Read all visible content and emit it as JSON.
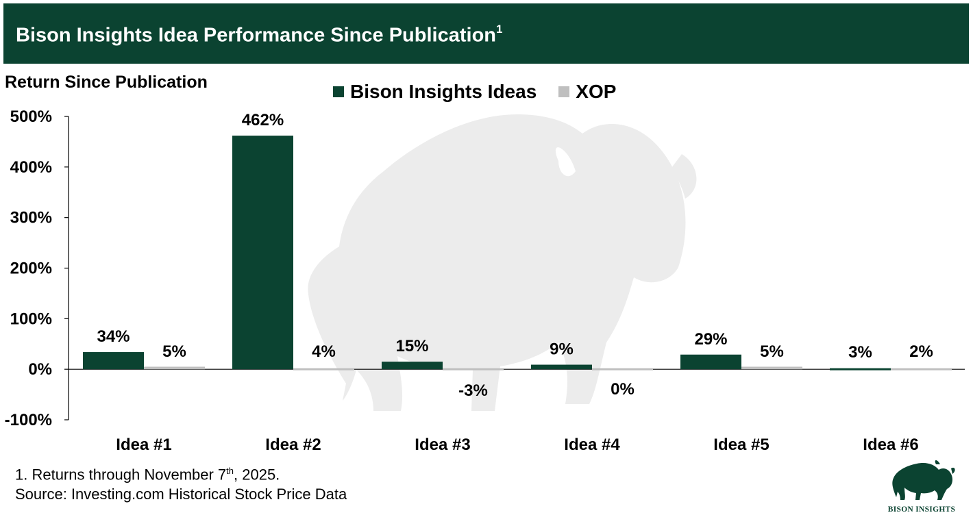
{
  "header": {
    "title": "Bison Insights Idea Performance Since Publication",
    "title_sup": "1"
  },
  "colors": {
    "brand": "#0b4331",
    "xop": "#bfbfbf",
    "watermark": "#ececec"
  },
  "chart_data": {
    "type": "bar",
    "title": "Bison Insights Idea Performance Since Publication",
    "ylabel": "Return Since Publication",
    "xlabel": "",
    "ylim": [
      -100,
      500
    ],
    "yticks": [
      -100,
      0,
      100,
      200,
      300,
      400,
      500
    ],
    "ytick_labels": [
      "-100%",
      "0%",
      "100%",
      "200%",
      "300%",
      "400%",
      "500%"
    ],
    "categories": [
      "Idea #1",
      "Idea #2",
      "Idea #3",
      "Idea #4",
      "Idea #5",
      "Idea #6"
    ],
    "series": [
      {
        "name": "Bison Insights Ideas",
        "color": "#0b4331",
        "values": [
          34,
          462,
          15,
          9,
          29,
          3
        ],
        "labels": [
          "34%",
          "462%",
          "15%",
          "9%",
          "29%",
          "3%"
        ]
      },
      {
        "name": "XOP",
        "color": "#bfbfbf",
        "values": [
          5,
          4,
          -3,
          0,
          5,
          2
        ],
        "labels": [
          "5%",
          "4%",
          "-3%",
          "0%",
          "5%",
          "2%"
        ]
      }
    ],
    "legend_position": "top-center",
    "grid": false
  },
  "footnotes": {
    "note_prefix": "1. Returns through November 7",
    "note_sup": "th",
    "note_suffix": ", 2025.",
    "source": "Source: Investing.com Historical Stock Price Data"
  },
  "logo": {
    "text": "BISON INSIGHTS"
  }
}
